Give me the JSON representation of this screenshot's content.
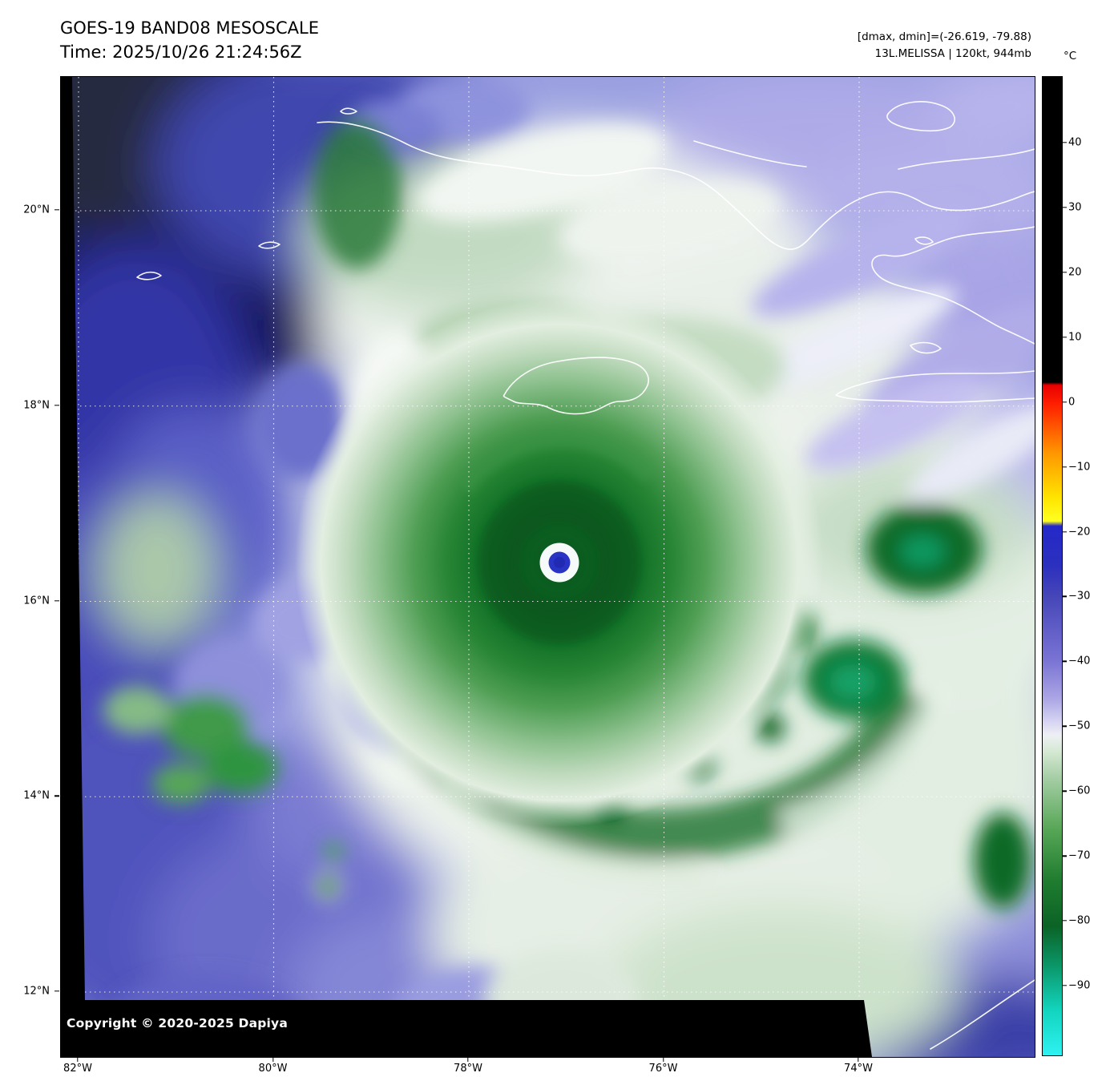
{
  "header": {
    "title": "GOES-19 BAND08 MESOSCALE",
    "time": "Time: 2025/10/26 21:24:56Z",
    "dmax_dmin": "[dmax, dmin]=(-26.619, -79.88)",
    "storm_info": "13L.MELISSA | 120kt, 944mb"
  },
  "colorbar": {
    "unit": "°C",
    "ticks": [
      {
        "label": "40",
        "value": 40
      },
      {
        "label": "30",
        "value": 30
      },
      {
        "label": "20",
        "value": 20
      },
      {
        "label": "10",
        "value": 10
      },
      {
        "label": "0",
        "value": 0
      },
      {
        "label": "−10",
        "value": -10
      },
      {
        "label": "−20",
        "value": -20
      },
      {
        "label": "−30",
        "value": -30
      },
      {
        "label": "−40",
        "value": -40
      },
      {
        "label": "−50",
        "value": -50
      },
      {
        "label": "−60",
        "value": -60
      },
      {
        "label": "−70",
        "value": -70
      },
      {
        "label": "−80",
        "value": -80
      },
      {
        "label": "−90",
        "value": -90
      }
    ]
  },
  "axes": {
    "lat": [
      {
        "label": "20°N",
        "value": 20
      },
      {
        "label": "18°N",
        "value": 18
      },
      {
        "label": "16°N",
        "value": 16
      },
      {
        "label": "14°N",
        "value": 14
      },
      {
        "label": "12°N",
        "value": 12
      }
    ],
    "lon": [
      {
        "label": "82°W",
        "value": 82
      },
      {
        "label": "80°W",
        "value": 80
      },
      {
        "label": "78°W",
        "value": 78
      },
      {
        "label": "76°W",
        "value": 76
      },
      {
        "label": "74°W",
        "value": 74
      }
    ]
  },
  "footer": {
    "copyright": "Copyright © 2020-2025 Dapiya"
  }
}
